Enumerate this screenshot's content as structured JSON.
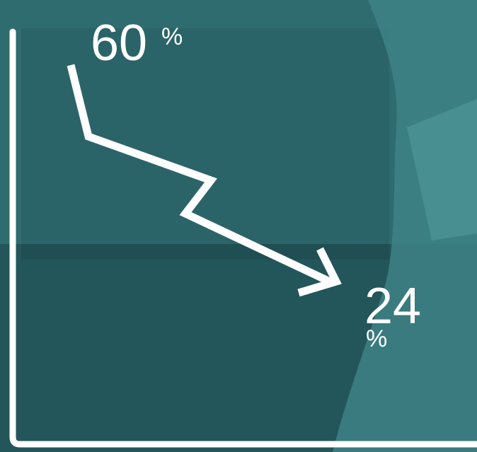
{
  "start": {
    "value": "60",
    "unit": "%"
  },
  "end": {
    "value": "24",
    "unit": "%"
  }
}
